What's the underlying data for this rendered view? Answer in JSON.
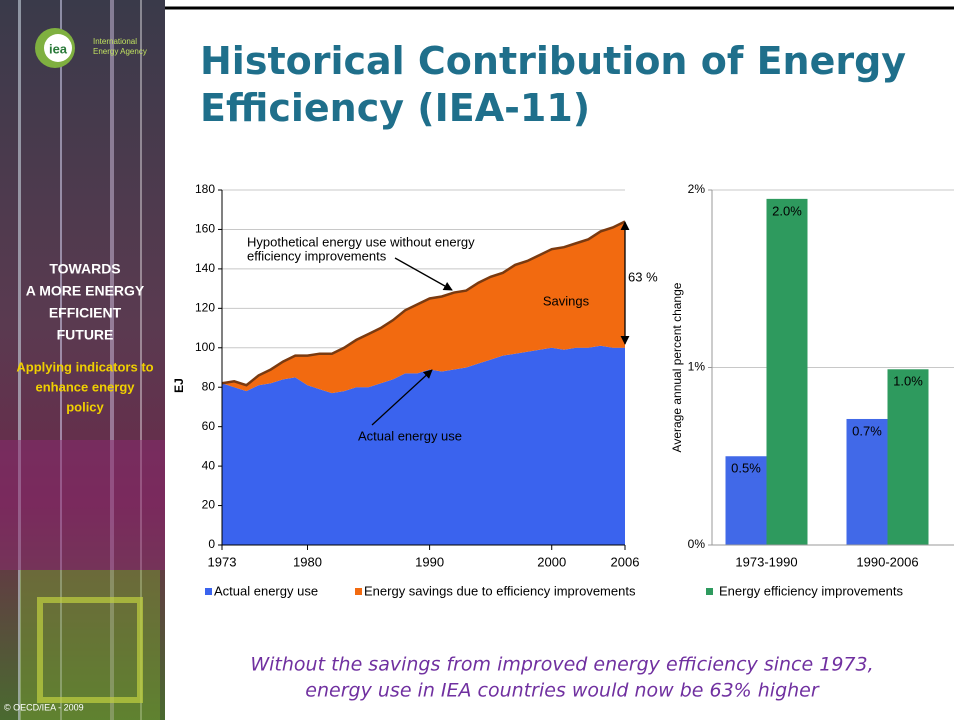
{
  "header": {
    "title": [
      "Historical Contribution of Energy",
      "Efficiency (IEA-11)"
    ]
  },
  "sidebar": {
    "logo": "iea",
    "agency": [
      "International",
      "Energy Agency"
    ],
    "heading": [
      "TOWARDS",
      "A MORE ENERGY",
      "EFFICIENT",
      "FUTURE"
    ],
    "subheading": [
      "Applying indicators to",
      "enhance energy",
      "policy"
    ],
    "copyright": "© OECD/IEA - 2009"
  },
  "chart_data": [
    {
      "type": "area",
      "stacked": true,
      "x": [
        1973,
        1974,
        1975,
        1976,
        1977,
        1978,
        1979,
        1980,
        1981,
        1982,
        1983,
        1984,
        1985,
        1986,
        1987,
        1988,
        1989,
        1990,
        1991,
        1992,
        1993,
        1994,
        1995,
        1996,
        1997,
        1998,
        1999,
        2000,
        2001,
        2002,
        2003,
        2004,
        2005,
        2006
      ],
      "xlim": [
        1973,
        2006
      ],
      "xticks": [
        1973,
        1980,
        1990,
        2000,
        2006
      ],
      "ylim": [
        0,
        180
      ],
      "yticks": [
        0,
        20,
        40,
        60,
        80,
        100,
        120,
        140,
        160,
        180
      ],
      "y_label": "EJ",
      "grid": true,
      "series": [
        {
          "name": "Actual energy use",
          "color": "#3a63ee",
          "values": [
            82,
            80,
            78,
            81,
            82,
            84,
            85,
            81,
            79,
            77,
            78,
            80,
            80,
            82,
            84,
            87,
            87,
            89,
            88,
            89,
            90,
            92,
            94,
            96,
            97,
            98,
            99,
            100,
            99,
            100,
            100,
            101,
            100,
            100
          ]
        },
        {
          "name": "Energy savings due to efficiency improvements",
          "color": "#f26a10",
          "values": [
            0,
            3,
            3,
            5,
            7,
            9,
            11,
            15,
            18,
            20,
            22,
            24,
            27,
            28,
            30,
            32,
            35,
            36,
            38,
            39,
            39,
            41,
            42,
            42,
            45,
            46,
            48,
            50,
            52,
            53,
            55,
            58,
            61,
            64
          ]
        }
      ],
      "annotations": [
        "Hypothetical energy use without energy",
        "efficiency improvements",
        "Savings",
        "Actual energy use",
        "63 %"
      ]
    },
    {
      "type": "bar",
      "categories": [
        "1973-1990",
        "1990-2006"
      ],
      "ylim": [
        0,
        2
      ],
      "yticks": [
        {
          "value": 0,
          "label": "0%"
        },
        {
          "value": 1,
          "label": "1%"
        },
        {
          "value": 2,
          "label": "2%"
        }
      ],
      "y_label": "Average annual percent change",
      "grid": true,
      "series": [
        {
          "color": "#4169e8",
          "values": [
            0.5,
            0.71
          ],
          "value_labels": [
            "0.5%",
            "0.7%"
          ]
        },
        {
          "name": "Energy efficiency improvements",
          "color": "#2e9a5e",
          "values": [
            1.95,
            0.99
          ],
          "value_labels": [
            "2.0%",
            "1.0%"
          ]
        }
      ]
    }
  ],
  "caption": [
    "Without the savings from improved energy efficiency since 1973,",
    "energy use in IEA countries would now be 63% higher"
  ]
}
